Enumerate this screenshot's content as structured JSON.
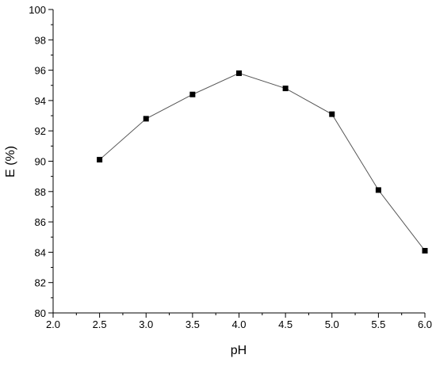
{
  "chart_data": {
    "type": "line",
    "xlabel": "pH",
    "ylabel": "E (%)",
    "xlim": [
      2.0,
      6.0
    ],
    "ylim": [
      80,
      100
    ],
    "x_ticks": [
      2.0,
      2.5,
      3.0,
      3.5,
      4.0,
      4.5,
      5.0,
      5.5,
      6.0
    ],
    "x_tick_labels": [
      "2.0",
      "2.5",
      "3.0",
      "3.5",
      "4.0",
      "4.5",
      "5.0",
      "5.5",
      "6.0"
    ],
    "y_ticks": [
      80,
      82,
      84,
      86,
      88,
      90,
      92,
      94,
      96,
      98,
      100
    ],
    "y_tick_labels": [
      "80",
      "82",
      "84",
      "86",
      "88",
      "90",
      "92",
      "94",
      "96",
      "98",
      "100"
    ],
    "grid": false,
    "marker": "square",
    "colors": {
      "line": "#555555",
      "marker": "#000000"
    },
    "series": [
      {
        "x": [
          2.5,
          3.0,
          3.5,
          4.0,
          4.5,
          5.0,
          5.5,
          6.0
        ],
        "values": [
          90.1,
          92.8,
          94.4,
          95.8,
          94.8,
          93.1,
          88.1,
          84.1
        ]
      }
    ]
  }
}
